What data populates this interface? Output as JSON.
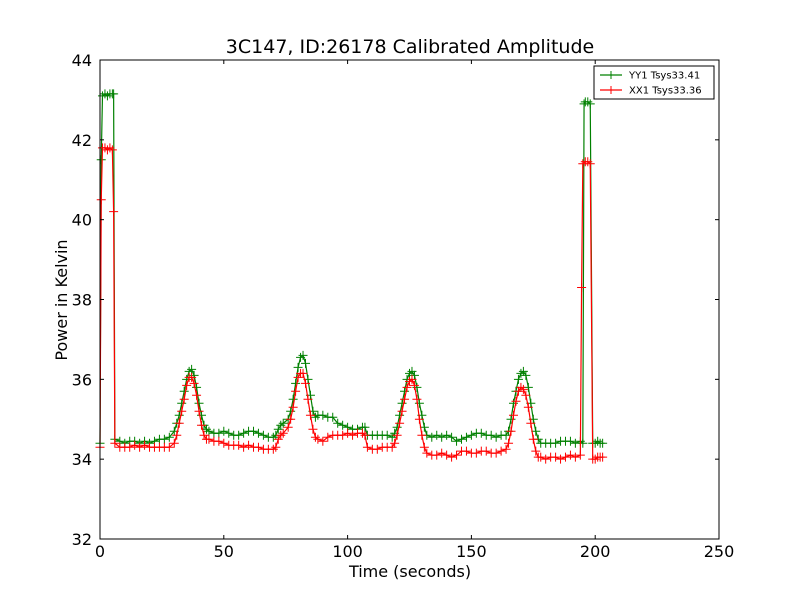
{
  "chart_data": {
    "type": "line",
    "title": "3C147, ID:26178 Calibrated Amplitude",
    "xlabel": "Time (seconds)",
    "ylabel": "Power in Kelvin",
    "xlim": [
      0,
      250
    ],
    "ylim": [
      32,
      44
    ],
    "xticks": [
      0,
      50,
      100,
      150,
      200,
      250
    ],
    "yticks": [
      32,
      34,
      36,
      38,
      40,
      42,
      44
    ],
    "grid": false,
    "legend_position": "top-right",
    "series": [
      {
        "name": "YY1 Tsys33.41",
        "color": "#008000",
        "marker": "+",
        "points": [
          [
            0,
            34.4
          ],
          [
            0.5,
            41.5
          ],
          [
            1,
            43.1
          ],
          [
            2,
            43.15
          ],
          [
            3,
            43.1
          ],
          [
            4,
            43.15
          ],
          [
            5,
            43.15
          ],
          [
            5.5,
            43.15
          ],
          [
            6,
            34.5
          ],
          [
            8,
            34.45
          ],
          [
            10,
            34.4
          ],
          [
            12,
            34.45
          ],
          [
            14,
            34.45
          ],
          [
            16,
            34.4
          ],
          [
            18,
            34.45
          ],
          [
            20,
            34.4
          ],
          [
            22,
            34.45
          ],
          [
            24,
            34.5
          ],
          [
            26,
            34.5
          ],
          [
            28,
            34.55
          ],
          [
            30,
            34.7
          ],
          [
            31,
            34.9
          ],
          [
            32,
            35.1
          ],
          [
            33,
            35.4
          ],
          [
            34,
            35.7
          ],
          [
            35,
            36.0
          ],
          [
            36,
            36.2
          ],
          [
            37,
            36.25
          ],
          [
            38,
            36.1
          ],
          [
            39,
            35.8
          ],
          [
            40,
            35.4
          ],
          [
            41,
            35.1
          ],
          [
            42,
            34.85
          ],
          [
            43,
            34.75
          ],
          [
            44,
            34.7
          ],
          [
            46,
            34.65
          ],
          [
            48,
            34.65
          ],
          [
            50,
            34.7
          ],
          [
            52,
            34.65
          ],
          [
            54,
            34.6
          ],
          [
            56,
            34.6
          ],
          [
            58,
            34.65
          ],
          [
            60,
            34.7
          ],
          [
            62,
            34.7
          ],
          [
            64,
            34.65
          ],
          [
            66,
            34.6
          ],
          [
            68,
            34.55
          ],
          [
            70,
            34.55
          ],
          [
            71,
            34.6
          ],
          [
            72,
            34.75
          ],
          [
            73,
            34.85
          ],
          [
            74,
            34.9
          ],
          [
            76,
            35.0
          ],
          [
            77,
            35.2
          ],
          [
            78,
            35.5
          ],
          [
            79,
            35.9
          ],
          [
            80,
            36.3
          ],
          [
            81,
            36.55
          ],
          [
            82,
            36.6
          ],
          [
            83,
            36.4
          ],
          [
            84,
            36.0
          ],
          [
            85,
            35.6
          ],
          [
            86,
            35.2
          ],
          [
            87,
            35.05
          ],
          [
            88,
            35.1
          ],
          [
            90,
            35.1
          ],
          [
            92,
            35.05
          ],
          [
            94,
            35.05
          ],
          [
            96,
            34.9
          ],
          [
            98,
            34.85
          ],
          [
            100,
            34.8
          ],
          [
            102,
            34.75
          ],
          [
            104,
            34.75
          ],
          [
            106,
            34.8
          ],
          [
            107,
            34.8
          ],
          [
            108,
            34.6
          ],
          [
            110,
            34.6
          ],
          [
            112,
            34.6
          ],
          [
            114,
            34.6
          ],
          [
            116,
            34.6
          ],
          [
            118,
            34.55
          ],
          [
            119,
            34.65
          ],
          [
            120,
            34.8
          ],
          [
            121,
            35.1
          ],
          [
            122,
            35.4
          ],
          [
            123,
            35.7
          ],
          [
            124,
            36.0
          ],
          [
            125,
            36.15
          ],
          [
            126,
            36.2
          ],
          [
            127,
            36.1
          ],
          [
            128,
            35.8
          ],
          [
            129,
            35.4
          ],
          [
            130,
            35.1
          ],
          [
            131,
            34.8
          ],
          [
            132,
            34.6
          ],
          [
            134,
            34.55
          ],
          [
            136,
            34.6
          ],
          [
            138,
            34.55
          ],
          [
            140,
            34.6
          ],
          [
            142,
            34.55
          ],
          [
            144,
            34.45
          ],
          [
            146,
            34.5
          ],
          [
            148,
            34.55
          ],
          [
            150,
            34.6
          ],
          [
            152,
            34.65
          ],
          [
            154,
            34.65
          ],
          [
            156,
            34.6
          ],
          [
            158,
            34.6
          ],
          [
            160,
            34.55
          ],
          [
            162,
            34.6
          ],
          [
            164,
            34.6
          ],
          [
            165,
            34.7
          ],
          [
            166,
            35.0
          ],
          [
            167,
            35.4
          ],
          [
            168,
            35.7
          ],
          [
            169,
            36.0
          ],
          [
            170,
            36.15
          ],
          [
            171,
            36.2
          ],
          [
            172,
            36.1
          ],
          [
            173,
            35.8
          ],
          [
            174,
            35.4
          ],
          [
            175,
            35.0
          ],
          [
            176,
            34.7
          ],
          [
            177,
            34.5
          ],
          [
            178,
            34.4
          ],
          [
            180,
            34.4
          ],
          [
            182,
            34.4
          ],
          [
            184,
            34.4
          ],
          [
            186,
            34.45
          ],
          [
            188,
            34.45
          ],
          [
            190,
            34.45
          ],
          [
            192,
            34.4
          ],
          [
            194,
            34.45
          ],
          [
            195,
            34.4
          ],
          [
            195.5,
            42.9
          ],
          [
            196,
            42.95
          ],
          [
            197,
            42.95
          ],
          [
            198,
            42.9
          ],
          [
            199,
            34.4
          ],
          [
            200,
            34.4
          ],
          [
            201,
            34.45
          ],
          [
            202,
            34.4
          ],
          [
            203,
            34.4
          ]
        ]
      },
      {
        "name": "XX1 Tsys33.36",
        "color": "#ff0000",
        "marker": "+",
        "points": [
          [
            0,
            34.3
          ],
          [
            0.5,
            40.5
          ],
          [
            1,
            41.8
          ],
          [
            2,
            41.8
          ],
          [
            3,
            41.75
          ],
          [
            4,
            41.8
          ],
          [
            5,
            41.75
          ],
          [
            5.5,
            40.2
          ],
          [
            6,
            34.4
          ],
          [
            8,
            34.3
          ],
          [
            10,
            34.3
          ],
          [
            12,
            34.3
          ],
          [
            14,
            34.35
          ],
          [
            16,
            34.3
          ],
          [
            18,
            34.35
          ],
          [
            20,
            34.3
          ],
          [
            22,
            34.3
          ],
          [
            24,
            34.3
          ],
          [
            26,
            34.3
          ],
          [
            28,
            34.3
          ],
          [
            30,
            34.4
          ],
          [
            31,
            34.6
          ],
          [
            32,
            34.9
          ],
          [
            33,
            35.2
          ],
          [
            34,
            35.5
          ],
          [
            35,
            35.85
          ],
          [
            36,
            36.05
          ],
          [
            37,
            36.05
          ],
          [
            38,
            35.9
          ],
          [
            39,
            35.6
          ],
          [
            40,
            35.2
          ],
          [
            41,
            34.85
          ],
          [
            42,
            34.6
          ],
          [
            43,
            34.5
          ],
          [
            44,
            34.5
          ],
          [
            46,
            34.45
          ],
          [
            48,
            34.45
          ],
          [
            50,
            34.4
          ],
          [
            52,
            34.35
          ],
          [
            54,
            34.35
          ],
          [
            56,
            34.35
          ],
          [
            58,
            34.3
          ],
          [
            60,
            34.35
          ],
          [
            62,
            34.3
          ],
          [
            64,
            34.3
          ],
          [
            66,
            34.25
          ],
          [
            68,
            34.25
          ],
          [
            70,
            34.25
          ],
          [
            71,
            34.3
          ],
          [
            72,
            34.5
          ],
          [
            73,
            34.6
          ],
          [
            74,
            34.65
          ],
          [
            76,
            34.8
          ],
          [
            77,
            35.0
          ],
          [
            78,
            35.3
          ],
          [
            79,
            35.7
          ],
          [
            80,
            36.05
          ],
          [
            81,
            36.15
          ],
          [
            82,
            36.15
          ],
          [
            83,
            35.9
          ],
          [
            84,
            35.5
          ],
          [
            85,
            35.1
          ],
          [
            86,
            34.75
          ],
          [
            87,
            34.55
          ],
          [
            88,
            34.5
          ],
          [
            90,
            34.45
          ],
          [
            92,
            34.55
          ],
          [
            94,
            34.6
          ],
          [
            96,
            34.6
          ],
          [
            98,
            34.6
          ],
          [
            100,
            34.65
          ],
          [
            102,
            34.6
          ],
          [
            104,
            34.65
          ],
          [
            106,
            34.65
          ],
          [
            107,
            34.6
          ],
          [
            108,
            34.3
          ],
          [
            110,
            34.25
          ],
          [
            112,
            34.25
          ],
          [
            114,
            34.3
          ],
          [
            116,
            34.3
          ],
          [
            118,
            34.3
          ],
          [
            119,
            34.4
          ],
          [
            120,
            34.6
          ],
          [
            121,
            34.9
          ],
          [
            122,
            35.2
          ],
          [
            123,
            35.5
          ],
          [
            124,
            35.8
          ],
          [
            125,
            35.95
          ],
          [
            126,
            36.0
          ],
          [
            127,
            35.85
          ],
          [
            128,
            35.5
          ],
          [
            129,
            35.0
          ],
          [
            130,
            34.6
          ],
          [
            131,
            34.3
          ],
          [
            132,
            34.15
          ],
          [
            134,
            34.1
          ],
          [
            136,
            34.1
          ],
          [
            138,
            34.15
          ],
          [
            140,
            34.1
          ],
          [
            142,
            34.05
          ],
          [
            144,
            34.1
          ],
          [
            146,
            34.2
          ],
          [
            148,
            34.2
          ],
          [
            150,
            34.15
          ],
          [
            152,
            34.15
          ],
          [
            154,
            34.2
          ],
          [
            156,
            34.2
          ],
          [
            158,
            34.15
          ],
          [
            160,
            34.15
          ],
          [
            162,
            34.2
          ],
          [
            164,
            34.25
          ],
          [
            165,
            34.4
          ],
          [
            166,
            34.7
          ],
          [
            167,
            35.1
          ],
          [
            168,
            35.45
          ],
          [
            169,
            35.7
          ],
          [
            170,
            35.8
          ],
          [
            171,
            35.75
          ],
          [
            172,
            35.6
          ],
          [
            173,
            35.3
          ],
          [
            174,
            34.9
          ],
          [
            175,
            34.5
          ],
          [
            176,
            34.2
          ],
          [
            177,
            34.05
          ],
          [
            178,
            34.05
          ],
          [
            180,
            34.0
          ],
          [
            182,
            34.05
          ],
          [
            184,
            34.05
          ],
          [
            186,
            34.0
          ],
          [
            188,
            34.05
          ],
          [
            190,
            34.1
          ],
          [
            192,
            34.05
          ],
          [
            194,
            34.1
          ],
          [
            194.5,
            38.3
          ],
          [
            195,
            41.4
          ],
          [
            196,
            41.45
          ],
          [
            197,
            41.45
          ],
          [
            198,
            41.4
          ],
          [
            199,
            34.0
          ],
          [
            200,
            34.0
          ],
          [
            201,
            34.05
          ],
          [
            202,
            34.05
          ],
          [
            203,
            34.05
          ]
        ]
      }
    ]
  }
}
